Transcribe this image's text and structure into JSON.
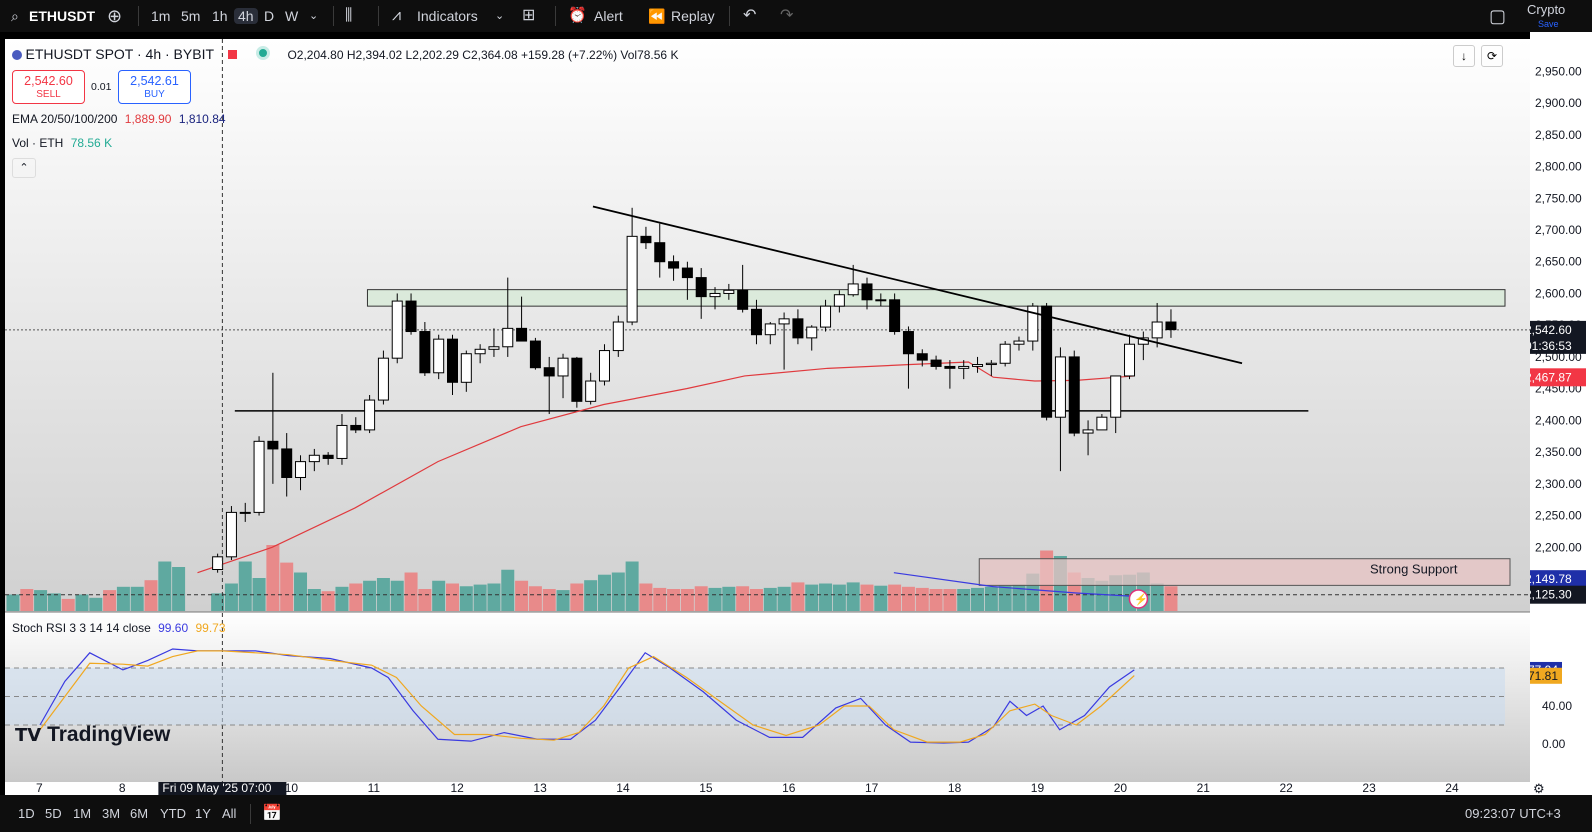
{
  "toolbar": {
    "symbol": "ETHUSDT",
    "timeframes": [
      "1m",
      "5m",
      "1h",
      "4h",
      "D",
      "W"
    ],
    "active_timeframe": "4h",
    "indicators_label": "Indicators",
    "alert_label": "Alert",
    "replay_label": "Replay",
    "right_label_1": "Crypto",
    "right_label_2": "Save"
  },
  "header": {
    "title": "ETHUSDT SPOT · 4h · BYBIT",
    "ohlc": "O2,204.80  H2,394.02  L2,202.29  C2,364.08  +159.28 (+7.22%)  Vol78.56 K",
    "sell_price": "2,542.60",
    "sell_label": "SELL",
    "spread": "0.01",
    "buy_price": "2,542.61",
    "buy_label": "BUY",
    "ema_label": "EMA 20/50/100/200",
    "ema_v1": "1,889.90",
    "ema_v2": "1,810.84",
    "vol_label": "Vol · ETH",
    "vol_value": "78.56 K"
  },
  "colors": {
    "up": "#ffffff",
    "down": "#000000",
    "ema": "#e03a3e",
    "vol_up": "#5fa9a0",
    "vol_down": "#e88a8a",
    "stoch_k": "#3a3ae0",
    "stoch_d": "#f0a820",
    "support_fill": "#e8c4c4",
    "resistance_fill": "#d8ead8"
  },
  "chart_data": [
    {
      "type": "candlestick",
      "title": "ETHUSDT SPOT · 4h · BYBIT",
      "ylim": [
        2160,
        2975
      ],
      "y_ticks": [
        2950,
        2900,
        2850,
        2800,
        2750,
        2700,
        2650,
        2600,
        2550,
        2500,
        2450,
        2400,
        2350,
        2300,
        2250,
        2200
      ],
      "y_tick_labels": [
        "2,950.00",
        "2,900.00",
        "2,850.00",
        "2,800.00",
        "2,750.00",
        "2,700.00",
        "2,650.00",
        "2,600.00",
        "2,550.00",
        "2,500.00",
        "2,450.00",
        "2,400.00",
        "2,350.00",
        "2,300.00",
        "2,250.00",
        "2,200.00"
      ],
      "x_ticks": [
        {
          "day": 7,
          "label": "7"
        },
        {
          "day": 8,
          "label": "8"
        },
        {
          "day": 10,
          "label": "10"
        },
        {
          "day": 11,
          "label": "11"
        },
        {
          "day": 12,
          "label": "12"
        },
        {
          "day": 13,
          "label": "13"
        },
        {
          "day": 14,
          "label": "14"
        },
        {
          "day": 15,
          "label": "15"
        },
        {
          "day": 16,
          "label": "16"
        },
        {
          "day": 17,
          "label": "17"
        },
        {
          "day": 18,
          "label": "18"
        },
        {
          "day": 19,
          "label": "19"
        },
        {
          "day": 20,
          "label": "20"
        },
        {
          "day": 21,
          "label": "21"
        },
        {
          "day": 22,
          "label": "22"
        },
        {
          "day": 23,
          "label": "23"
        },
        {
          "day": 24,
          "label": "24"
        }
      ],
      "crosshair_label": "Fri 09 May '25   07:00",
      "crosshair_day": 9.2,
      "candles": [
        {
          "o": 2165,
          "h": 2190,
          "l": 2160,
          "c": 2185
        },
        {
          "o": 2185,
          "h": 2265,
          "l": 2180,
          "c": 2255
        },
        {
          "o": 2255,
          "h": 2270,
          "l": 2240,
          "c": 2255
        },
        {
          "o": 2255,
          "h": 2375,
          "l": 2250,
          "c": 2367
        },
        {
          "o": 2367,
          "h": 2475,
          "l": 2300,
          "c": 2355
        },
        {
          "o": 2355,
          "h": 2380,
          "l": 2280,
          "c": 2310
        },
        {
          "o": 2310,
          "h": 2345,
          "l": 2290,
          "c": 2335
        },
        {
          "o": 2335,
          "h": 2355,
          "l": 2320,
          "c": 2345
        },
        {
          "o": 2345,
          "h": 2350,
          "l": 2330,
          "c": 2340
        },
        {
          "o": 2340,
          "h": 2410,
          "l": 2330,
          "c": 2392
        },
        {
          "o": 2392,
          "h": 2405,
          "l": 2380,
          "c": 2385
        },
        {
          "o": 2385,
          "h": 2440,
          "l": 2380,
          "c": 2432
        },
        {
          "o": 2432,
          "h": 2510,
          "l": 2425,
          "c": 2498
        },
        {
          "o": 2498,
          "h": 2600,
          "l": 2490,
          "c": 2588
        },
        {
          "o": 2588,
          "h": 2600,
          "l": 2535,
          "c": 2540
        },
        {
          "o": 2540,
          "h": 2555,
          "l": 2470,
          "c": 2475
        },
        {
          "o": 2475,
          "h": 2535,
          "l": 2465,
          "c": 2528
        },
        {
          "o": 2528,
          "h": 2535,
          "l": 2440,
          "c": 2460
        },
        {
          "o": 2460,
          "h": 2510,
          "l": 2445,
          "c": 2505
        },
        {
          "o": 2505,
          "h": 2520,
          "l": 2490,
          "c": 2512
        },
        {
          "o": 2512,
          "h": 2545,
          "l": 2500,
          "c": 2516
        },
        {
          "o": 2516,
          "h": 2625,
          "l": 2500,
          "c": 2545
        },
        {
          "o": 2545,
          "h": 2595,
          "l": 2530,
          "c": 2525
        },
        {
          "o": 2525,
          "h": 2530,
          "l": 2480,
          "c": 2483
        },
        {
          "o": 2483,
          "h": 2500,
          "l": 2410,
          "c": 2470
        },
        {
          "o": 2470,
          "h": 2505,
          "l": 2435,
          "c": 2498
        },
        {
          "o": 2498,
          "h": 2500,
          "l": 2420,
          "c": 2430
        },
        {
          "o": 2430,
          "h": 2475,
          "l": 2425,
          "c": 2462
        },
        {
          "o": 2462,
          "h": 2520,
          "l": 2455,
          "c": 2510
        },
        {
          "o": 2510,
          "h": 2565,
          "l": 2500,
          "c": 2555
        },
        {
          "o": 2555,
          "h": 2735,
          "l": 2550,
          "c": 2690
        },
        {
          "o": 2690,
          "h": 2705,
          "l": 2670,
          "c": 2680
        },
        {
          "o": 2680,
          "h": 2710,
          "l": 2625,
          "c": 2650
        },
        {
          "o": 2650,
          "h": 2660,
          "l": 2620,
          "c": 2640
        },
        {
          "o": 2640,
          "h": 2650,
          "l": 2590,
          "c": 2625
        },
        {
          "o": 2625,
          "h": 2640,
          "l": 2560,
          "c": 2595
        },
        {
          "o": 2595,
          "h": 2610,
          "l": 2575,
          "c": 2600
        },
        {
          "o": 2600,
          "h": 2615,
          "l": 2590,
          "c": 2605
        },
        {
          "o": 2605,
          "h": 2645,
          "l": 2570,
          "c": 2575
        },
        {
          "o": 2575,
          "h": 2590,
          "l": 2520,
          "c": 2535
        },
        {
          "o": 2535,
          "h": 2555,
          "l": 2520,
          "c": 2552
        },
        {
          "o": 2552,
          "h": 2570,
          "l": 2480,
          "c": 2560
        },
        {
          "o": 2560,
          "h": 2575,
          "l": 2520,
          "c": 2530
        },
        {
          "o": 2530,
          "h": 2550,
          "l": 2510,
          "c": 2547
        },
        {
          "o": 2547,
          "h": 2590,
          "l": 2540,
          "c": 2580
        },
        {
          "o": 2580,
          "h": 2605,
          "l": 2570,
          "c": 2598
        },
        {
          "o": 2598,
          "h": 2645,
          "l": 2595,
          "c": 2615
        },
        {
          "o": 2615,
          "h": 2625,
          "l": 2575,
          "c": 2590
        },
        {
          "o": 2590,
          "h": 2600,
          "l": 2580,
          "c": 2590
        },
        {
          "o": 2590,
          "h": 2600,
          "l": 2535,
          "c": 2540
        },
        {
          "o": 2540,
          "h": 2548,
          "l": 2450,
          "c": 2505
        },
        {
          "o": 2505,
          "h": 2512,
          "l": 2485,
          "c": 2495
        },
        {
          "o": 2495,
          "h": 2502,
          "l": 2480,
          "c": 2485
        },
        {
          "o": 2485,
          "h": 2495,
          "l": 2450,
          "c": 2482
        },
        {
          "o": 2482,
          "h": 2495,
          "l": 2465,
          "c": 2485
        },
        {
          "o": 2485,
          "h": 2500,
          "l": 2475,
          "c": 2488
        },
        {
          "o": 2488,
          "h": 2495,
          "l": 2470,
          "c": 2490
        },
        {
          "o": 2490,
          "h": 2525,
          "l": 2485,
          "c": 2520
        },
        {
          "o": 2520,
          "h": 2532,
          "l": 2510,
          "c": 2525
        },
        {
          "o": 2525,
          "h": 2585,
          "l": 2510,
          "c": 2580
        },
        {
          "o": 2580,
          "h": 2585,
          "l": 2400,
          "c": 2405
        },
        {
          "o": 2405,
          "h": 2515,
          "l": 2320,
          "c": 2500
        },
        {
          "o": 2500,
          "h": 2510,
          "l": 2375,
          "c": 2380
        },
        {
          "o": 2380,
          "h": 2400,
          "l": 2345,
          "c": 2385
        },
        {
          "o": 2385,
          "h": 2410,
          "l": 2390,
          "c": 2405
        },
        {
          "o": 2405,
          "h": 2470,
          "l": 2380,
          "c": 2470
        },
        {
          "o": 2470,
          "h": 2535,
          "l": 2465,
          "c": 2520
        },
        {
          "o": 2520,
          "h": 2540,
          "l": 2495,
          "c": 2530
        },
        {
          "o": 2530,
          "h": 2585,
          "l": 2515,
          "c": 2555
        },
        {
          "o": 2555,
          "h": 2575,
          "l": 2530,
          "c": 2543
        }
      ],
      "volume": [
        32,
        50,
        90,
        60,
        120,
        88,
        70,
        40,
        36,
        44,
        50,
        55,
        60,
        55,
        70,
        40,
        55,
        50,
        45,
        48,
        50,
        75,
        55,
        45,
        40,
        38,
        50,
        56,
        66,
        70,
        90,
        50,
        42,
        40,
        40,
        45,
        42,
        44,
        45,
        40,
        42,
        44,
        52,
        48,
        50,
        48,
        52,
        48,
        46,
        48,
        44,
        42,
        40,
        40,
        40,
        42,
        44,
        46,
        48,
        68,
        110,
        100,
        70,
        60,
        55,
        65,
        66,
        70,
        50,
        45
      ],
      "ema_line": [
        [
          8.9,
          2160
        ],
        [
          9.8,
          2200
        ],
        [
          10.8,
          2262
        ],
        [
          11.8,
          2335
        ],
        [
          12.8,
          2390
        ],
        [
          13.8,
          2425
        ],
        [
          14.8,
          2450
        ],
        [
          15.5,
          2470
        ],
        [
          16.5,
          2482
        ],
        [
          17.5,
          2488
        ],
        [
          18.2,
          2492
        ],
        [
          18.5,
          2468
        ],
        [
          19.0,
          2462
        ],
        [
          19.5,
          2463
        ],
        [
          20.2,
          2470
        ]
      ],
      "resistance_zone": [
        2580,
        2606
      ],
      "support_zone": [
        2140,
        2182
      ],
      "support_label": "Strong Support",
      "horizontal_line": 2415,
      "trendline": [
        [
          13.67,
          2737
        ],
        [
          21.5,
          2490
        ]
      ],
      "price_labels": [
        {
          "value": 2542.6,
          "label": "2,542.60",
          "sub": "01:36:53"
        },
        {
          "value": 2467.87,
          "label": "2,467.87"
        },
        {
          "value": 2149.78,
          "label": "2,149.78"
        },
        {
          "value": 2125.3,
          "label": "2,125.30"
        }
      ]
    },
    {
      "type": "line",
      "title": "Stoch RSI 3 3 14 14 close",
      "ylim": [
        0,
        100
      ],
      "y_ticks": [
        40,
        0
      ],
      "y_tick_labels": [
        "40.00",
        "0.00"
      ],
      "bands": [
        80,
        20
      ],
      "series": [
        {
          "name": "K",
          "value": "99.60",
          "last": "77.94",
          "points": [
            [
              7.0,
              20
            ],
            [
              7.3,
              66
            ],
            [
              7.6,
              96
            ],
            [
              8.0,
              78
            ],
            [
              8.3,
              88
            ],
            [
              8.6,
              100
            ],
            [
              8.9,
              98
            ],
            [
              9.2,
              98
            ],
            [
              9.6,
              98
            ],
            [
              10.0,
              93
            ],
            [
              10.5,
              90
            ],
            [
              11.0,
              80
            ],
            [
              11.2,
              70
            ],
            [
              11.5,
              35
            ],
            [
              11.8,
              5
            ],
            [
              12.2,
              3
            ],
            [
              12.6,
              12
            ],
            [
              13.0,
              5
            ],
            [
              13.4,
              5
            ],
            [
              13.7,
              25
            ],
            [
              14.0,
              60
            ],
            [
              14.3,
              96
            ],
            [
              14.6,
              80
            ],
            [
              15.0,
              55
            ],
            [
              15.4,
              25
            ],
            [
              15.8,
              7
            ],
            [
              16.2,
              7
            ],
            [
              16.6,
              38
            ],
            [
              16.9,
              48
            ],
            [
              17.2,
              20
            ],
            [
              17.5,
              2
            ],
            [
              17.9,
              1
            ],
            [
              18.2,
              2
            ],
            [
              18.5,
              18
            ],
            [
              18.7,
              45
            ],
            [
              18.9,
              30
            ],
            [
              19.1,
              40
            ],
            [
              19.3,
              15
            ],
            [
              19.6,
              30
            ],
            [
              19.9,
              60
            ],
            [
              20.2,
              78
            ]
          ]
        },
        {
          "name": "D",
          "value": "99.73",
          "last": "71.81",
          "points": [
            [
              7.0,
              15
            ],
            [
              7.3,
              50
            ],
            [
              7.6,
              85
            ],
            [
              8.0,
              84
            ],
            [
              8.3,
              82
            ],
            [
              8.6,
              92
            ],
            [
              8.9,
              98
            ],
            [
              9.2,
              98
            ],
            [
              9.6,
              96
            ],
            [
              10.0,
              94
            ],
            [
              10.5,
              88
            ],
            [
              11.0,
              83
            ],
            [
              11.3,
              70
            ],
            [
              11.6,
              40
            ],
            [
              12.0,
              10
            ],
            [
              12.4,
              10
            ],
            [
              12.8,
              6
            ],
            [
              13.2,
              4
            ],
            [
              13.5,
              12
            ],
            [
              13.8,
              40
            ],
            [
              14.1,
              80
            ],
            [
              14.4,
              92
            ],
            [
              14.8,
              70
            ],
            [
              15.2,
              45
            ],
            [
              15.6,
              20
            ],
            [
              16.0,
              9
            ],
            [
              16.4,
              20
            ],
            [
              16.7,
              40
            ],
            [
              17.0,
              40
            ],
            [
              17.3,
              15
            ],
            [
              17.7,
              2
            ],
            [
              18.1,
              2
            ],
            [
              18.4,
              10
            ],
            [
              18.7,
              35
            ],
            [
              19.0,
              42
            ],
            [
              19.2,
              30
            ],
            [
              19.5,
              20
            ],
            [
              19.8,
              40
            ],
            [
              20.2,
              72
            ]
          ]
        }
      ]
    }
  ],
  "watermark": "TradingView",
  "bottom": {
    "ranges": [
      "1D",
      "5D",
      "1M",
      "3M",
      "6M",
      "YTD",
      "1Y",
      "All"
    ],
    "clock": "09:23:07 UTC+3"
  }
}
